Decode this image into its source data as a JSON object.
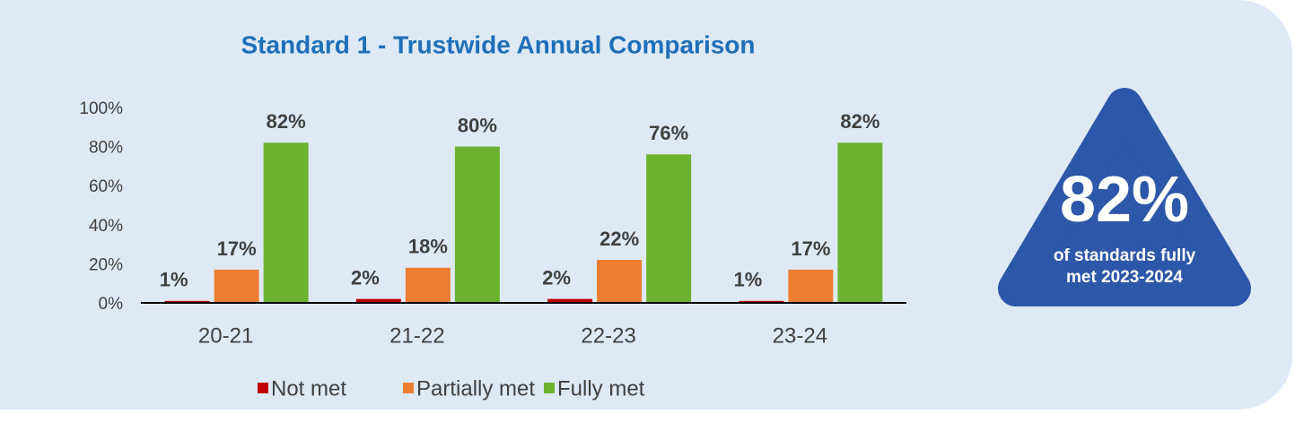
{
  "chart_data": {
    "type": "bar",
    "title": "Standard 1 - Trustwide Annual Comparison",
    "categories": [
      "20-21",
      "21-22",
      "22-23",
      "23-24"
    ],
    "series": [
      {
        "name": "Not met",
        "color": "#c00000",
        "values": [
          1,
          2,
          2,
          1
        ],
        "value_labels": [
          "1%",
          "2%",
          "2%",
          "1%"
        ]
      },
      {
        "name": "Partially met",
        "color": "#ed7d31",
        "values": [
          17,
          18,
          22,
          17
        ],
        "value_labels": [
          "17%",
          "18%",
          "22%",
          "17%"
        ]
      },
      {
        "name": "Fully met",
        "color": "#6cb22f",
        "values": [
          82,
          80,
          76,
          82
        ],
        "value_labels": [
          "82%",
          "80%",
          "76%",
          "82%"
        ]
      }
    ],
    "ylim": [
      0,
      100
    ],
    "yticks": [
      {
        "value": 0,
        "label": "0%"
      },
      {
        "value": 20,
        "label": "20%"
      },
      {
        "value": 40,
        "label": "40%"
      },
      {
        "value": 60,
        "label": "60%"
      },
      {
        "value": 80,
        "label": "80%"
      },
      {
        "value": 100,
        "label": "100%"
      }
    ],
    "grid": false,
    "legend": "bottom",
    "callout": {
      "headline": "82%",
      "lines": [
        "of standards fully",
        "met 2023-2024"
      ]
    }
  }
}
